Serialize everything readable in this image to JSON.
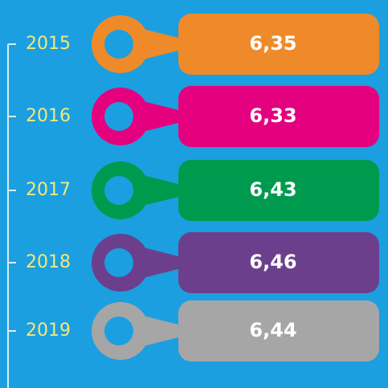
{
  "items": [
    {
      "year": "2015",
      "value": "6,35",
      "color": "#ef8a2a"
    },
    {
      "year": "2016",
      "value": "6,33",
      "color": "#e4007f"
    },
    {
      "year": "2017",
      "value": "6,43",
      "color": "#009a4e"
    },
    {
      "year": "2018",
      "value": "6,46",
      "color": "#6c3f8c"
    },
    {
      "year": "2019",
      "value": "6,44",
      "color": "#a6a6a6"
    }
  ]
}
